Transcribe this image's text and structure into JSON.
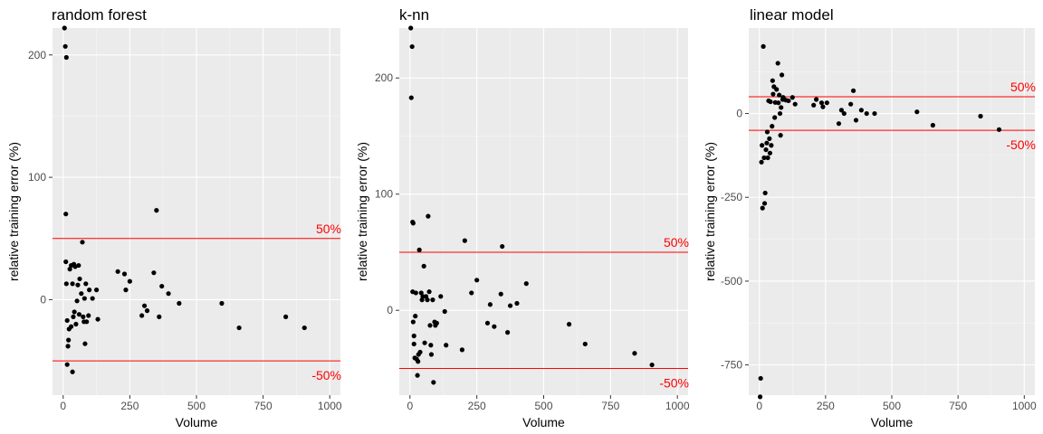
{
  "chart_data": [
    {
      "type": "scatter",
      "title": "random forest",
      "xlabel": "Volume",
      "ylabel": "relative training error (%)",
      "xlim": [
        -40,
        1040
      ],
      "ylim": [
        -78,
        222
      ],
      "xticks": [
        0,
        250,
        500,
        750,
        1000
      ],
      "yticks": [
        0,
        100,
        200
      ],
      "grid": true,
      "reference_lines": [
        {
          "y": 50,
          "label": "50%"
        },
        {
          "y": -50,
          "label": "-50%"
        }
      ],
      "points": [
        [
          5,
          222
        ],
        [
          8,
          207
        ],
        [
          12,
          198
        ],
        [
          10,
          70
        ],
        [
          10,
          31
        ],
        [
          12,
          13
        ],
        [
          15,
          -17
        ],
        [
          15,
          -53
        ],
        [
          18,
          -38
        ],
        [
          20,
          -33
        ],
        [
          22,
          -24
        ],
        [
          25,
          25
        ],
        [
          30,
          28
        ],
        [
          30,
          -22
        ],
        [
          35,
          -59
        ],
        [
          35,
          13
        ],
        [
          38,
          -14
        ],
        [
          40,
          29
        ],
        [
          42,
          -10
        ],
        [
          45,
          27
        ],
        [
          48,
          -20
        ],
        [
          52,
          -1
        ],
        [
          55,
          12
        ],
        [
          58,
          28
        ],
        [
          60,
          -12
        ],
        [
          62,
          17
        ],
        [
          68,
          5
        ],
        [
          72,
          47
        ],
        [
          75,
          -14
        ],
        [
          78,
          -18
        ],
        [
          80,
          1
        ],
        [
          82,
          -36
        ],
        [
          85,
          13
        ],
        [
          88,
          -18
        ],
        [
          95,
          -13
        ],
        [
          98,
          8
        ],
        [
          110,
          1
        ],
        [
          125,
          8
        ],
        [
          130,
          -16
        ],
        [
          205,
          23
        ],
        [
          230,
          21
        ],
        [
          235,
          8
        ],
        [
          250,
          15
        ],
        [
          295,
          -13
        ],
        [
          305,
          -5
        ],
        [
          315,
          -9
        ],
        [
          340,
          22
        ],
        [
          350,
          73
        ],
        [
          360,
          -14
        ],
        [
          370,
          11
        ],
        [
          395,
          5
        ],
        [
          435,
          -3
        ],
        [
          595,
          -3
        ],
        [
          660,
          -23
        ],
        [
          835,
          -14
        ],
        [
          905,
          -23
        ]
      ]
    },
    {
      "type": "scatter",
      "title": "k-nn",
      "xlabel": "Volume",
      "ylabel": "relative training error (%)",
      "xlim": [
        -40,
        1040
      ],
      "ylim": [
        -73,
        243
      ],
      "xticks": [
        0,
        250,
        500,
        750,
        1000
      ],
      "yticks": [
        0,
        100,
        200
      ],
      "grid": true,
      "reference_lines": [
        {
          "y": 50,
          "label": "50%"
        },
        {
          "y": -50,
          "label": "-50%"
        }
      ],
      "points": [
        [
          3,
          243
        ],
        [
          5,
          183
        ],
        [
          8,
          227
        ],
        [
          10,
          76
        ],
        [
          12,
          75
        ],
        [
          10,
          16
        ],
        [
          12,
          -10
        ],
        [
          15,
          -22
        ],
        [
          15,
          -29
        ],
        [
          18,
          -41
        ],
        [
          20,
          -5
        ],
        [
          22,
          15
        ],
        [
          25,
          -42
        ],
        [
          28,
          -56
        ],
        [
          30,
          -44
        ],
        [
          32,
          -38
        ],
        [
          35,
          52
        ],
        [
          38,
          -36
        ],
        [
          42,
          15
        ],
        [
          45,
          9
        ],
        [
          48,
          12
        ],
        [
          52,
          38
        ],
        [
          55,
          -28
        ],
        [
          60,
          12
        ],
        [
          65,
          9
        ],
        [
          68,
          81
        ],
        [
          72,
          16
        ],
        [
          75,
          -13
        ],
        [
          78,
          -30
        ],
        [
          80,
          -38
        ],
        [
          85,
          9
        ],
        [
          88,
          -62
        ],
        [
          92,
          -10
        ],
        [
          95,
          -13
        ],
        [
          100,
          -11
        ],
        [
          115,
          12
        ],
        [
          130,
          -1
        ],
        [
          135,
          -30
        ],
        [
          195,
          -34
        ],
        [
          205,
          60
        ],
        [
          230,
          15
        ],
        [
          250,
          26
        ],
        [
          290,
          -11
        ],
        [
          300,
          5
        ],
        [
          315,
          -14
        ],
        [
          340,
          14
        ],
        [
          345,
          55
        ],
        [
          365,
          -19
        ],
        [
          375,
          4
        ],
        [
          400,
          6
        ],
        [
          435,
          23
        ],
        [
          595,
          -12
        ],
        [
          655,
          -29
        ],
        [
          840,
          -37
        ],
        [
          905,
          -47
        ]
      ]
    },
    {
      "type": "scatter",
      "title": "linear model",
      "xlabel": "Volume",
      "ylabel": "relative training error (%)",
      "xlim": [
        -40,
        1040
      ],
      "ylim": [
        -840,
        255
      ],
      "xticks": [
        0,
        250,
        500,
        750,
        1000
      ],
      "yticks": [
        -750,
        -500,
        -250,
        0
      ],
      "grid": true,
      "reference_lines": [
        {
          "y": 50,
          "label": "50%"
        },
        {
          "y": -50,
          "label": "-50%"
        }
      ],
      "points": [
        [
          3,
          -845
        ],
        [
          5,
          -790
        ],
        [
          8,
          -145
        ],
        [
          10,
          -95
        ],
        [
          12,
          -282
        ],
        [
          15,
          200
        ],
        [
          18,
          -132
        ],
        [
          20,
          -268
        ],
        [
          22,
          -237
        ],
        [
          25,
          -108
        ],
        [
          28,
          -88
        ],
        [
          30,
          -55
        ],
        [
          32,
          -132
        ],
        [
          35,
          38
        ],
        [
          38,
          -75
        ],
        [
          40,
          -118
        ],
        [
          42,
          35
        ],
        [
          45,
          -95
        ],
        [
          48,
          -38
        ],
        [
          50,
          98
        ],
        [
          52,
          58
        ],
        [
          55,
          80
        ],
        [
          58,
          -12
        ],
        [
          60,
          33
        ],
        [
          65,
          72
        ],
        [
          70,
          150
        ],
        [
          72,
          32
        ],
        [
          75,
          55
        ],
        [
          78,
          0
        ],
        [
          80,
          -65
        ],
        [
          82,
          18
        ],
        [
          85,
          115
        ],
        [
          88,
          42
        ],
        [
          90,
          48
        ],
        [
          100,
          40
        ],
        [
          110,
          38
        ],
        [
          125,
          48
        ],
        [
          135,
          28
        ],
        [
          205,
          25
        ],
        [
          215,
          42
        ],
        [
          235,
          32
        ],
        [
          240,
          20
        ],
        [
          255,
          32
        ],
        [
          300,
          -30
        ],
        [
          310,
          10
        ],
        [
          320,
          0
        ],
        [
          345,
          28
        ],
        [
          355,
          68
        ],
        [
          365,
          -20
        ],
        [
          385,
          10
        ],
        [
          405,
          0
        ],
        [
          435,
          0
        ],
        [
          595,
          5
        ],
        [
          655,
          -35
        ],
        [
          835,
          -8
        ],
        [
          905,
          -48
        ]
      ]
    }
  ]
}
